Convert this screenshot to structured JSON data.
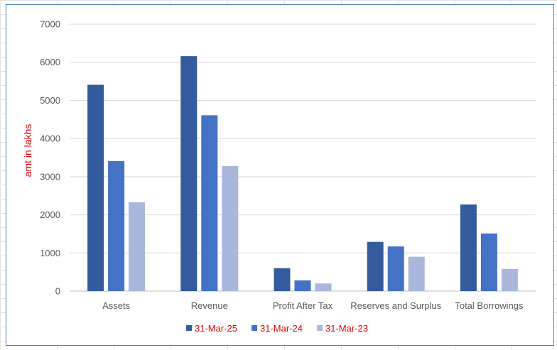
{
  "chart_data": {
    "type": "bar",
    "title": "",
    "xlabel": "",
    "ylabel": "amt in lakhs",
    "ylim": [
      0,
      7000
    ],
    "yticks": [
      0,
      1000,
      2000,
      3000,
      4000,
      5000,
      6000,
      7000
    ],
    "grid": true,
    "legend_position": "bottom",
    "categories": [
      "Assets",
      "Revenue",
      "Profit After Tax",
      "Reserves and Surplus",
      "Total Borrowings"
    ],
    "series": [
      {
        "name": "31-Mar-25",
        "color": "#335b9e",
        "values": [
          5410,
          6160,
          600,
          1290,
          2270
        ]
      },
      {
        "name": "31-Mar-24",
        "color": "#4472c4",
        "values": [
          3410,
          4610,
          280,
          1170,
          1510
        ]
      },
      {
        "name": "31-Mar-23",
        "color": "#a9b7dd",
        "values": [
          2330,
          3280,
          200,
          900,
          580
        ]
      }
    ]
  }
}
